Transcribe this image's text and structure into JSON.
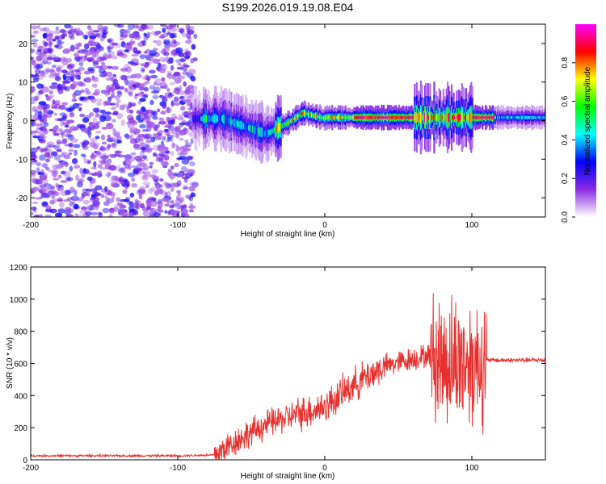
{
  "title": "S199.2026.019.19.08.E04",
  "chart_data": [
    {
      "type": "heatmap",
      "name": "spectrogram",
      "xlabel": "Height of straight line (km)",
      "ylabel": "Frequency (Hz)",
      "xlim": [
        -200,
        150
      ],
      "ylim": [
        -25,
        25
      ],
      "x_ticks": [
        -200,
        -100,
        0,
        100
      ],
      "y_ticks": [
        -20,
        -10,
        0,
        10,
        20
      ],
      "description_regions": [
        {
          "x_range": [
            -200,
            -90
          ],
          "freq_range": [
            -25,
            25
          ],
          "amplitude_range": [
            0.0,
            0.2
          ],
          "pattern": "broadband noise"
        },
        {
          "x_range": [
            -90,
            150
          ],
          "freq_center": 0.5,
          "amplitude_range": [
            0.2,
            1.0
          ],
          "pattern": "narrow band near 0 Hz"
        }
      ],
      "colorbar": {
        "label": "Normalized spectral amplitude",
        "range": [
          0.0,
          1.0
        ],
        "ticks": [
          "0.0",
          "0.2",
          "0.4",
          "0.6",
          "0.8"
        ],
        "colors": [
          "#ffffff",
          "#8a2be2",
          "#0000ff",
          "#00ffff",
          "#00ff00",
          "#ffff00",
          "#ff0000",
          "#ff00ff"
        ]
      }
    },
    {
      "type": "line",
      "name": "snr",
      "xlabel": "Height of straight line (km)",
      "ylabel": "SNR (10 * v/v)",
      "xlim": [
        -200,
        150
      ],
      "ylim": [
        0,
        1200
      ],
      "x_ticks": [
        -200,
        -100,
        0,
        100
      ],
      "y_ticks": [
        0,
        200,
        400,
        600,
        800,
        1000,
        1200
      ],
      "color": "#e8312f",
      "envelope": [
        {
          "x": -200,
          "y": 25
        },
        {
          "x": -100,
          "y": 25
        },
        {
          "x": -75,
          "y": 30
        },
        {
          "x": -60,
          "y": 120
        },
        {
          "x": -40,
          "y": 220
        },
        {
          "x": -20,
          "y": 280
        },
        {
          "x": 0,
          "y": 330
        },
        {
          "x": 20,
          "y": 470
        },
        {
          "x": 40,
          "y": 580
        },
        {
          "x": 60,
          "y": 630
        },
        {
          "x": 70,
          "y": 650
        },
        {
          "x": 80,
          "y": 620
        },
        {
          "x": 100,
          "y": 610
        },
        {
          "x": 110,
          "y": 620
        },
        {
          "x": 150,
          "y": 620
        }
      ]
    }
  ]
}
